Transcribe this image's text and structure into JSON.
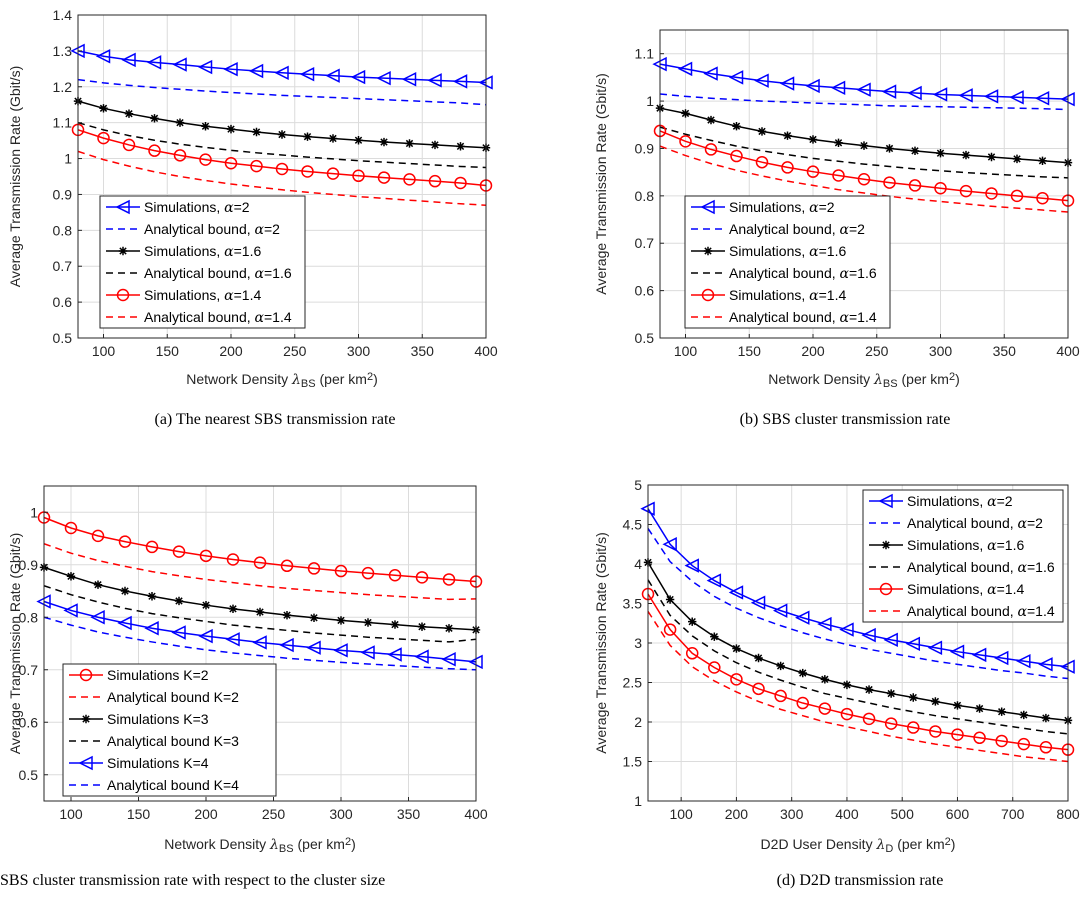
{
  "chart_data": [
    {
      "id": "a",
      "type": "line",
      "caption": "(a) The nearest SBS transmission rate",
      "ylabel": "Average Transmission Rate (Gbit/s)",
      "xlabel": {
        "main": "Network Density",
        "symbol": "λ",
        "sub": "BS",
        "unit_open": "(per km",
        "unit_sup": "2",
        "unit_close": ")"
      },
      "xlim": [
        80,
        400
      ],
      "ylim": [
        0.5,
        1.4
      ],
      "xticks": [
        100,
        150,
        200,
        250,
        300,
        350,
        400
      ],
      "xtick_labels": [
        "100",
        "150",
        "200",
        "250",
        "300",
        "350",
        "400"
      ],
      "yticks": [
        0.5,
        0.6,
        0.7,
        0.8,
        0.9,
        1.0,
        1.1,
        1.2,
        1.3,
        1.4
      ],
      "ytick_labels": [
        "0.5",
        "0.6",
        "0.7",
        "0.8",
        "0.9",
        "1",
        "1.1",
        "1.2",
        "1.3",
        "1.4"
      ],
      "grid": true,
      "legend_position": "bottom-left",
      "x": [
        80,
        100,
        120,
        140,
        160,
        180,
        200,
        220,
        240,
        260,
        280,
        300,
        320,
        340,
        360,
        380,
        400
      ],
      "series": [
        {
          "name": "Simulations, ",
          "greek": "α",
          "param": "=2",
          "color": "#0000ff",
          "dash": "solid",
          "marker": "triangle-left",
          "values": [
            1.3,
            1.285,
            1.275,
            1.268,
            1.262,
            1.255,
            1.249,
            1.244,
            1.239,
            1.235,
            1.231,
            1.227,
            1.224,
            1.221,
            1.218,
            1.215,
            1.212
          ]
        },
        {
          "name": "Analytical bound, ",
          "greek": "α",
          "param": "=2",
          "color": "#0000ff",
          "dash": "dashed",
          "marker": "none",
          "values": [
            1.22,
            1.211,
            1.204,
            1.198,
            1.193,
            1.188,
            1.184,
            1.18,
            1.176,
            1.173,
            1.17,
            1.167,
            1.164,
            1.161,
            1.158,
            1.155,
            1.15
          ]
        },
        {
          "name": "Simulations, ",
          "greek": "α",
          "param": "=1.6",
          "color": "#000000",
          "dash": "solid",
          "marker": "star",
          "values": [
            1.16,
            1.14,
            1.125,
            1.112,
            1.1,
            1.09,
            1.082,
            1.074,
            1.067,
            1.061,
            1.056,
            1.051,
            1.046,
            1.042,
            1.038,
            1.034,
            1.03
          ]
        },
        {
          "name": "Analytical bound, ",
          "greek": "α",
          "param": "=1.6",
          "color": "#000000",
          "dash": "dashed",
          "marker": "none",
          "values": [
            1.1,
            1.08,
            1.064,
            1.051,
            1.04,
            1.031,
            1.023,
            1.016,
            1.01,
            1.004,
            0.999,
            0.994,
            0.99,
            0.986,
            0.982,
            0.978,
            0.975
          ]
        },
        {
          "name": "Simulations, ",
          "greek": "α",
          "param": "=1.4",
          "color": "#ff0000",
          "dash": "solid",
          "marker": "circle",
          "values": [
            1.08,
            1.057,
            1.038,
            1.022,
            1.009,
            0.997,
            0.987,
            0.979,
            0.971,
            0.964,
            0.958,
            0.952,
            0.947,
            0.942,
            0.937,
            0.932,
            0.925
          ]
        },
        {
          "name": "Analytical bound, ",
          "greek": "α",
          "param": "=1.4",
          "color": "#ff0000",
          "dash": "dashed",
          "marker": "none",
          "values": [
            1.02,
            0.997,
            0.979,
            0.963,
            0.95,
            0.939,
            0.929,
            0.921,
            0.913,
            0.906,
            0.9,
            0.894,
            0.889,
            0.884,
            0.879,
            0.874,
            0.87
          ]
        }
      ]
    },
    {
      "id": "b",
      "type": "line",
      "caption": "(b) SBS cluster transmission rate",
      "ylabel": "Average Transmission Rate (Gbit/s)",
      "xlabel": {
        "main": "Network Density",
        "symbol": "λ",
        "sub": "BS",
        "unit_open": "(per km",
        "unit_sup": "2",
        "unit_close": ")"
      },
      "xlim": [
        80,
        400
      ],
      "ylim": [
        0.5,
        1.15
      ],
      "xticks": [
        100,
        150,
        200,
        250,
        300,
        350,
        400
      ],
      "xtick_labels": [
        "100",
        "150",
        "200",
        "250",
        "300",
        "350",
        "400"
      ],
      "yticks": [
        0.5,
        0.6,
        0.7,
        0.8,
        0.9,
        1.0,
        1.1
      ],
      "ytick_labels": [
        "0.5",
        "0.6",
        "0.7",
        "0.8",
        "0.9",
        "1",
        "1.1"
      ],
      "grid": true,
      "legend_position": "bottom-left",
      "x": [
        80,
        100,
        120,
        140,
        160,
        180,
        200,
        220,
        240,
        260,
        280,
        300,
        320,
        340,
        360,
        380,
        400
      ],
      "series": [
        {
          "name": "Simulations, ",
          "greek": "α",
          "param": "=2",
          "color": "#0000ff",
          "dash": "solid",
          "marker": "triangle-left",
          "values": [
            1.078,
            1.068,
            1.058,
            1.05,
            1.043,
            1.037,
            1.032,
            1.028,
            1.024,
            1.02,
            1.017,
            1.014,
            1.012,
            1.01,
            1.008,
            1.006,
            1.004
          ]
        },
        {
          "name": "Analytical bound, ",
          "greek": "α",
          "param": "=2",
          "color": "#0000ff",
          "dash": "dashed",
          "marker": "none",
          "values": [
            1.015,
            1.01,
            1.006,
            1.003,
            1.0,
            0.998,
            0.996,
            0.994,
            0.992,
            0.99,
            0.989,
            0.988,
            0.987,
            0.986,
            0.985,
            0.984,
            0.982
          ]
        },
        {
          "name": "Simulations, ",
          "greek": "α",
          "param": "=1.6",
          "color": "#000000",
          "dash": "solid",
          "marker": "star",
          "values": [
            0.985,
            0.974,
            0.96,
            0.947,
            0.936,
            0.927,
            0.919,
            0.912,
            0.906,
            0.9,
            0.895,
            0.89,
            0.886,
            0.882,
            0.878,
            0.874,
            0.87
          ]
        },
        {
          "name": "Analytical bound, ",
          "greek": "α",
          "param": "=1.6",
          "color": "#000000",
          "dash": "dashed",
          "marker": "none",
          "values": [
            0.945,
            0.93,
            0.917,
            0.905,
            0.895,
            0.887,
            0.879,
            0.873,
            0.867,
            0.862,
            0.857,
            0.853,
            0.849,
            0.846,
            0.843,
            0.84,
            0.838
          ]
        },
        {
          "name": "Simulations, ",
          "greek": "α",
          "param": "=1.4",
          "color": "#ff0000",
          "dash": "solid",
          "marker": "circle",
          "values": [
            0.937,
            0.915,
            0.898,
            0.884,
            0.871,
            0.86,
            0.851,
            0.843,
            0.835,
            0.828,
            0.822,
            0.816,
            0.81,
            0.805,
            0.8,
            0.795,
            0.79
          ]
        },
        {
          "name": "Analytical bound, ",
          "greek": "α",
          "param": "=1.4",
          "color": "#ff0000",
          "dash": "dashed",
          "marker": "none",
          "values": [
            0.905,
            0.885,
            0.868,
            0.854,
            0.842,
            0.831,
            0.822,
            0.813,
            0.806,
            0.799,
            0.793,
            0.788,
            0.783,
            0.778,
            0.774,
            0.77,
            0.766
          ]
        }
      ]
    },
    {
      "id": "c",
      "type": "line",
      "caption": "SBS cluster transmission rate with respect to the cluster size",
      "ylabel": "Average Transmission Rate (Gbit/s)",
      "xlabel": {
        "main": "Network Density",
        "symbol": "λ",
        "sub": "BS",
        "unit_open": "(per km",
        "unit_sup": "2",
        "unit_close": ")"
      },
      "xlim": [
        80,
        400
      ],
      "ylim": [
        0.45,
        1.05
      ],
      "xticks": [
        100,
        150,
        200,
        250,
        300,
        350,
        400
      ],
      "xtick_labels": [
        "100",
        "150",
        "200",
        "250",
        "300",
        "350",
        "400"
      ],
      "yticks": [
        0.5,
        0.6,
        0.7,
        0.8,
        0.9,
        1.0
      ],
      "ytick_labels": [
        "0.5",
        "0.6",
        "0.7",
        "0.8",
        "0.9",
        "1"
      ],
      "grid": true,
      "legend_position": "bottom-left",
      "x": [
        80,
        100,
        120,
        140,
        160,
        180,
        200,
        220,
        240,
        260,
        280,
        300,
        320,
        340,
        360,
        380,
        400
      ],
      "series": [
        {
          "name": "Simulations K=2",
          "greek": "",
          "param": "",
          "color": "#ff0000",
          "dash": "solid",
          "marker": "circle",
          "values": [
            0.99,
            0.97,
            0.955,
            0.944,
            0.934,
            0.925,
            0.917,
            0.91,
            0.904,
            0.898,
            0.893,
            0.888,
            0.884,
            0.88,
            0.876,
            0.872,
            0.868
          ]
        },
        {
          "name": "Analytical bound K=2",
          "greek": "",
          "param": "",
          "color": "#ff0000",
          "dash": "dashed",
          "marker": "none",
          "values": [
            0.94,
            0.922,
            0.908,
            0.897,
            0.887,
            0.879,
            0.872,
            0.866,
            0.86,
            0.855,
            0.851,
            0.847,
            0.843,
            0.84,
            0.837,
            0.834,
            0.835
          ]
        },
        {
          "name": "Simulations K=3",
          "greek": "",
          "param": "",
          "color": "#000000",
          "dash": "solid",
          "marker": "star",
          "values": [
            0.895,
            0.878,
            0.862,
            0.85,
            0.84,
            0.831,
            0.823,
            0.816,
            0.81,
            0.804,
            0.799,
            0.794,
            0.79,
            0.786,
            0.782,
            0.779,
            0.776
          ]
        },
        {
          "name": "Analytical bound K=3",
          "greek": "",
          "param": "",
          "color": "#000000",
          "dash": "dashed",
          "marker": "none",
          "values": [
            0.86,
            0.843,
            0.829,
            0.817,
            0.807,
            0.799,
            0.792,
            0.785,
            0.78,
            0.775,
            0.77,
            0.766,
            0.762,
            0.759,
            0.756,
            0.753,
            0.758
          ]
        },
        {
          "name": "Simulations K=4",
          "greek": "",
          "param": "",
          "color": "#0000ff",
          "dash": "solid",
          "marker": "triangle-left",
          "values": [
            0.83,
            0.813,
            0.8,
            0.789,
            0.779,
            0.771,
            0.764,
            0.758,
            0.752,
            0.747,
            0.742,
            0.737,
            0.733,
            0.729,
            0.725,
            0.72,
            0.715
          ]
        },
        {
          "name": "Analytical bound K=4",
          "greek": "",
          "param": "",
          "color": "#0000ff",
          "dash": "dashed",
          "marker": "none",
          "values": [
            0.8,
            0.785,
            0.772,
            0.762,
            0.753,
            0.745,
            0.738,
            0.732,
            0.727,
            0.722,
            0.718,
            0.714,
            0.711,
            0.708,
            0.705,
            0.702,
            0.7
          ]
        }
      ]
    },
    {
      "id": "d",
      "type": "line",
      "caption": "(d) D2D transmission rate",
      "ylabel": "Average Transmission Rate (Gbit/s)",
      "xlabel": {
        "main": "D2D User Density",
        "symbol": "λ",
        "sub": "D",
        "unit_open": "(per km",
        "unit_sup": "2",
        "unit_close": ")"
      },
      "xlim": [
        40,
        800
      ],
      "ylim": [
        1,
        5
      ],
      "xticks": [
        100,
        200,
        300,
        400,
        500,
        600,
        700,
        800
      ],
      "xtick_labels": [
        "100",
        "200",
        "300",
        "400",
        "500",
        "600",
        "700",
        "800"
      ],
      "yticks": [
        1,
        1.5,
        2,
        2.5,
        3,
        3.5,
        4,
        4.5,
        5
      ],
      "ytick_labels": [
        "1",
        "1.5",
        "2",
        "2.5",
        "3",
        "3.5",
        "4",
        "4.5",
        "5"
      ],
      "grid": true,
      "legend_position": "top-right",
      "x": [
        40,
        80,
        120,
        160,
        200,
        240,
        280,
        320,
        360,
        400,
        440,
        480,
        520,
        560,
        600,
        640,
        680,
        720,
        760,
        800
      ],
      "series": [
        {
          "name": "Simulations, ",
          "greek": "α",
          "param": "=2",
          "color": "#0000ff",
          "dash": "solid",
          "marker": "triangle-left",
          "values": [
            4.7,
            4.25,
            3.98,
            3.79,
            3.64,
            3.51,
            3.41,
            3.32,
            3.24,
            3.17,
            3.1,
            3.04,
            2.99,
            2.94,
            2.89,
            2.85,
            2.81,
            2.77,
            2.73,
            2.7
          ]
        },
        {
          "name": "Analytical bound, ",
          "greek": "α",
          "param": "=2",
          "color": "#0000ff",
          "dash": "dashed",
          "marker": "none",
          "values": [
            4.45,
            4.03,
            3.78,
            3.59,
            3.44,
            3.32,
            3.22,
            3.13,
            3.05,
            2.98,
            2.92,
            2.87,
            2.82,
            2.77,
            2.73,
            2.69,
            2.65,
            2.62,
            2.58,
            2.55
          ]
        },
        {
          "name": "Simulations, ",
          "greek": "α",
          "param": "=1.6",
          "color": "#000000",
          "dash": "solid",
          "marker": "star",
          "values": [
            4.02,
            3.55,
            3.27,
            3.08,
            2.93,
            2.81,
            2.71,
            2.62,
            2.54,
            2.47,
            2.41,
            2.36,
            2.31,
            2.26,
            2.21,
            2.17,
            2.13,
            2.09,
            2.05,
            2.02
          ]
        },
        {
          "name": "Analytical bound, ",
          "greek": "α",
          "param": "=1.6",
          "color": "#000000",
          "dash": "dashed",
          "marker": "none",
          "values": [
            3.8,
            3.35,
            3.09,
            2.9,
            2.75,
            2.63,
            2.53,
            2.44,
            2.36,
            2.3,
            2.24,
            2.18,
            2.13,
            2.08,
            2.04,
            2.0,
            1.96,
            1.92,
            1.88,
            1.85
          ]
        },
        {
          "name": "Simulations, ",
          "greek": "α",
          "param": "=1.4",
          "color": "#ff0000",
          "dash": "solid",
          "marker": "circle",
          "values": [
            3.62,
            3.17,
            2.87,
            2.69,
            2.54,
            2.42,
            2.33,
            2.24,
            2.17,
            2.1,
            2.04,
            1.98,
            1.93,
            1.88,
            1.84,
            1.8,
            1.76,
            1.72,
            1.68,
            1.65
          ]
        },
        {
          "name": "Analytical bound, ",
          "greek": "α",
          "param": "=1.4",
          "color": "#ff0000",
          "dash": "dashed",
          "marker": "none",
          "values": [
            3.4,
            2.97,
            2.7,
            2.52,
            2.38,
            2.26,
            2.16,
            2.08,
            2.0,
            1.94,
            1.88,
            1.82,
            1.77,
            1.72,
            1.68,
            1.64,
            1.6,
            1.56,
            1.53,
            1.5
          ]
        }
      ]
    }
  ]
}
